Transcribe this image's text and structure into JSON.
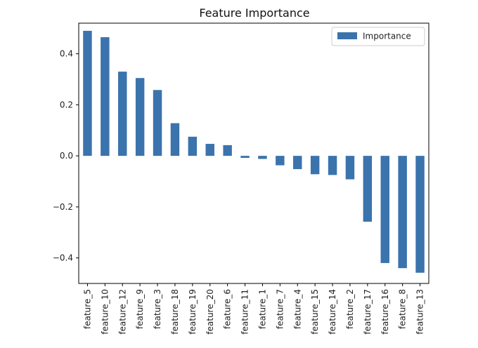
{
  "chart_data": {
    "type": "bar",
    "title": "Feature Importance",
    "xlabel": "",
    "ylabel": "",
    "categories": [
      "feature_5",
      "feature_10",
      "feature_12",
      "feature_9",
      "feature_3",
      "feature_18",
      "feature_19",
      "feature_20",
      "feature_6",
      "feature_11",
      "feature_1",
      "feature_7",
      "feature_4",
      "feature_15",
      "feature_14",
      "feature_2",
      "feature_17",
      "feature_16",
      "feature_8",
      "feature_13"
    ],
    "series": [
      {
        "name": "Importance",
        "color": "#3b73ad",
        "values": [
          0.49,
          0.465,
          0.33,
          0.305,
          0.258,
          0.128,
          0.075,
          0.047,
          0.042,
          -0.008,
          -0.012,
          -0.037,
          -0.052,
          -0.072,
          -0.075,
          -0.092,
          -0.258,
          -0.42,
          -0.44,
          -0.458
        ]
      }
    ],
    "ylim": [
      -0.5,
      0.52
    ],
    "yticks": [
      -0.4,
      -0.2,
      0.0,
      0.2,
      0.4
    ],
    "ytick_labels": [
      "−0.4",
      "−0.2",
      "0.0",
      "0.2",
      "0.4"
    ],
    "grid": false,
    "legend": {
      "position": "top-right",
      "entries": [
        "Importance"
      ]
    }
  }
}
